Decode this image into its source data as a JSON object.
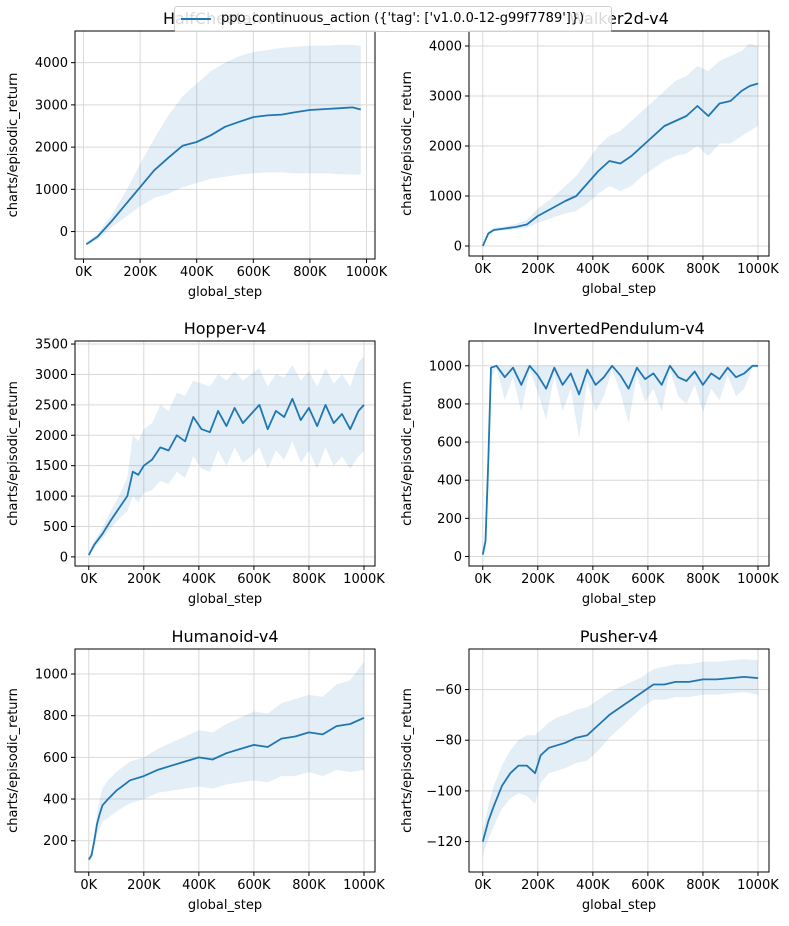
{
  "legend": {
    "label": "ppo_continuous_action ({'tag': ['v1.0.0-12-g99f7789']})",
    "color": "#1f77b4"
  },
  "chart_data": [
    {
      "type": "line",
      "title": "HalfCheetah-v4",
      "xlabel": "global_step",
      "ylabel": "charts/episodic_return",
      "xlim": [
        -30000,
        1030000
      ],
      "ylim": [
        -650,
        4750
      ],
      "xticks": [
        0,
        200000,
        400000,
        600000,
        800000,
        1000000
      ],
      "xtick_labels": [
        "0K",
        "200K",
        "400K",
        "600K",
        "800K",
        "1000K"
      ],
      "yticks": [
        0,
        1000,
        2000,
        3000,
        4000
      ],
      "ytick_labels": [
        "0",
        "1000",
        "2000",
        "3000",
        "4000"
      ],
      "grid": true,
      "series": [
        {
          "x": [
            10000,
            50000,
            100000,
            150000,
            200000,
            250000,
            300000,
            350000,
            400000,
            450000,
            500000,
            550000,
            600000,
            650000,
            700000,
            750000,
            800000,
            850000,
            900000,
            950000,
            980000
          ],
          "y": [
            -300,
            -120,
            250,
            650,
            1050,
            1450,
            1750,
            2030,
            2120,
            2280,
            2480,
            2600,
            2710,
            2750,
            2770,
            2830,
            2880,
            2900,
            2920,
            2940,
            2890
          ],
          "y_upper": [
            -270,
            -50,
            400,
            950,
            1600,
            2200,
            2750,
            3200,
            3500,
            3800,
            4000,
            4150,
            4250,
            4300,
            4350,
            4380,
            4400,
            4400,
            4420,
            4420,
            4400
          ],
          "y_lower": [
            -330,
            -190,
            100,
            350,
            600,
            800,
            900,
            1050,
            1150,
            1250,
            1300,
            1350,
            1380,
            1400,
            1400,
            1380,
            1380,
            1380,
            1360,
            1350,
            1350
          ]
        }
      ]
    },
    {
      "type": "line",
      "title": "Walker2d-v4",
      "xlabel": "global_step",
      "ylabel": "charts/episodic_return",
      "xlim": [
        -50000,
        1040000
      ],
      "ylim": [
        -200,
        4300
      ],
      "xticks": [
        0,
        200000,
        400000,
        600000,
        800000,
        1000000
      ],
      "xtick_labels": [
        "0K",
        "200K",
        "400K",
        "600K",
        "800K",
        "1000K"
      ],
      "yticks": [
        0,
        1000,
        2000,
        3000,
        4000
      ],
      "ytick_labels": [
        "0",
        "1000",
        "2000",
        "3000",
        "4000"
      ],
      "grid": true,
      "series": [
        {
          "x": [
            0,
            20000,
            40000,
            80000,
            120000,
            160000,
            200000,
            250000,
            300000,
            340000,
            380000,
            420000,
            460000,
            500000,
            540000,
            580000,
            620000,
            660000,
            700000,
            740000,
            780000,
            820000,
            860000,
            900000,
            940000,
            970000,
            1000000
          ],
          "y": [
            0,
            250,
            320,
            350,
            380,
            430,
            600,
            750,
            900,
            1000,
            1250,
            1500,
            1700,
            1650,
            1800,
            2000,
            2200,
            2400,
            2500,
            2600,
            2800,
            2600,
            2850,
            2900,
            3100,
            3200,
            3250
          ],
          "y_upper": [
            0,
            290,
            360,
            390,
            440,
            520,
            750,
            950,
            1200,
            1400,
            1700,
            2000,
            2200,
            2300,
            2500,
            2700,
            2900,
            3100,
            3300,
            3400,
            3600,
            3500,
            3700,
            3800,
            3900,
            4050,
            4000
          ],
          "y_lower": [
            0,
            210,
            290,
            310,
            330,
            360,
            460,
            560,
            650,
            700,
            850,
            1050,
            1200,
            1100,
            1200,
            1400,
            1550,
            1700,
            1800,
            1850,
            2000,
            1800,
            2050,
            2050,
            2200,
            2300,
            2400
          ]
        }
      ]
    },
    {
      "type": "line",
      "title": "Hopper-v4",
      "xlabel": "global_step",
      "ylabel": "charts/episodic_return",
      "xlim": [
        -50000,
        1040000
      ],
      "ylim": [
        -150,
        3550
      ],
      "xticks": [
        0,
        200000,
        400000,
        600000,
        800000,
        1000000
      ],
      "xtick_labels": [
        "0K",
        "200K",
        "400K",
        "600K",
        "800K",
        "1000K"
      ],
      "yticks": [
        0,
        500,
        1000,
        1500,
        2000,
        2500,
        3000,
        3500
      ],
      "ytick_labels": [
        "0",
        "500",
        "1000",
        "1500",
        "2000",
        "2500",
        "3000",
        "3500"
      ],
      "grid": true,
      "series": [
        {
          "x": [
            0,
            20000,
            50000,
            80000,
            110000,
            140000,
            160000,
            180000,
            200000,
            230000,
            260000,
            290000,
            320000,
            350000,
            380000,
            410000,
            440000,
            470000,
            500000,
            530000,
            560000,
            590000,
            620000,
            650000,
            680000,
            710000,
            740000,
            770000,
            800000,
            830000,
            860000,
            890000,
            920000,
            950000,
            980000,
            1000000
          ],
          "y": [
            30,
            200,
            380,
            600,
            800,
            1000,
            1400,
            1350,
            1500,
            1600,
            1800,
            1750,
            2000,
            1900,
            2300,
            2100,
            2050,
            2400,
            2150,
            2450,
            2200,
            2350,
            2500,
            2100,
            2400,
            2300,
            2600,
            2250,
            2450,
            2150,
            2500,
            2200,
            2350,
            2100,
            2400,
            2500
          ],
          "y_upper": [
            60,
            260,
            480,
            760,
            1000,
            1300,
            2000,
            1900,
            2100,
            2200,
            2500,
            2400,
            2700,
            2650,
            2900,
            2850,
            2800,
            3000,
            2900,
            3050,
            2900,
            3000,
            3100,
            2800,
            3000,
            2950,
            3150,
            2900,
            3050,
            2800,
            3100,
            2850,
            3000,
            2800,
            3200,
            3300
          ],
          "y_lower": [
            10,
            150,
            300,
            480,
            620,
            760,
            1000,
            900,
            1050,
            1100,
            1250,
            1200,
            1400,
            1300,
            1650,
            1450,
            1400,
            1750,
            1500,
            1800,
            1550,
            1650,
            1800,
            1450,
            1750,
            1600,
            1900,
            1550,
            1750,
            1450,
            1800,
            1500,
            1650,
            1450,
            1650,
            1750
          ]
        }
      ]
    },
    {
      "type": "line",
      "title": "InvertedPendulum-v4",
      "xlabel": "global_step",
      "ylabel": "charts/episodic_return",
      "xlim": [
        -50000,
        1040000
      ],
      "ylim": [
        -50,
        1130
      ],
      "xticks": [
        0,
        200000,
        400000,
        600000,
        800000,
        1000000
      ],
      "xtick_labels": [
        "0K",
        "200K",
        "400K",
        "600K",
        "800K",
        "1000K"
      ],
      "yticks": [
        0,
        200,
        400,
        600,
        800,
        1000
      ],
      "ytick_labels": [
        "0",
        "200",
        "400",
        "600",
        "800",
        "1000"
      ],
      "grid": true,
      "series": [
        {
          "x": [
            0,
            10000,
            20000,
            30000,
            50000,
            80000,
            110000,
            140000,
            170000,
            200000,
            230000,
            260000,
            290000,
            320000,
            350000,
            380000,
            410000,
            440000,
            470000,
            500000,
            530000,
            560000,
            590000,
            620000,
            650000,
            680000,
            710000,
            740000,
            770000,
            800000,
            830000,
            860000,
            890000,
            920000,
            950000,
            980000,
            1000000
          ],
          "y": [
            10,
            80,
            500,
            990,
            1000,
            940,
            990,
            900,
            1000,
            950,
            880,
            990,
            900,
            960,
            850,
            980,
            900,
            940,
            1000,
            950,
            880,
            990,
            930,
            960,
            900,
            1000,
            940,
            920,
            970,
            900,
            960,
            930,
            990,
            940,
            960,
            1000,
            1000
          ],
          "y_upper": [
            20,
            120,
            650,
            1000,
            1000,
            1000,
            1000,
            1000,
            1000,
            1000,
            1000,
            1000,
            1000,
            1000,
            1000,
            1000,
            1000,
            1000,
            1000,
            1000,
            1000,
            1000,
            1000,
            1000,
            1000,
            1000,
            1000,
            1000,
            1000,
            1000,
            1000,
            1000,
            1000,
            1000,
            1000,
            1000,
            1000
          ],
          "y_lower": [
            5,
            40,
            350,
            930,
            990,
            820,
            940,
            760,
            980,
            860,
            720,
            950,
            760,
            880,
            620,
            920,
            760,
            840,
            980,
            860,
            700,
            950,
            810,
            880,
            760,
            980,
            840,
            800,
            900,
            760,
            880,
            820,
            950,
            840,
            880,
            990,
            990
          ]
        }
      ]
    },
    {
      "type": "line",
      "title": "Humanoid-v4",
      "xlabel": "global_step",
      "ylabel": "charts/episodic_return",
      "xlim": [
        -50000,
        1040000
      ],
      "ylim": [
        50,
        1120
      ],
      "xticks": [
        0,
        200000,
        400000,
        600000,
        800000,
        1000000
      ],
      "xtick_labels": [
        "0K",
        "200K",
        "400K",
        "600K",
        "800K",
        "1000K"
      ],
      "yticks": [
        200,
        400,
        600,
        800,
        1000
      ],
      "ytick_labels": [
        "200",
        "400",
        "600",
        "800",
        "1000"
      ],
      "grid": true,
      "series": [
        {
          "x": [
            0,
            10000,
            20000,
            30000,
            40000,
            50000,
            70000,
            100000,
            150000,
            200000,
            250000,
            300000,
            350000,
            400000,
            450000,
            500000,
            550000,
            600000,
            650000,
            700000,
            750000,
            800000,
            850000,
            900000,
            950000,
            1000000
          ],
          "y": [
            110,
            130,
            200,
            280,
            330,
            370,
            400,
            440,
            490,
            510,
            540,
            560,
            580,
            600,
            590,
            620,
            640,
            660,
            650,
            690,
            700,
            720,
            710,
            750,
            760,
            790
          ],
          "y_upper": [
            120,
            150,
            230,
            330,
            400,
            450,
            490,
            530,
            580,
            600,
            640,
            670,
            700,
            730,
            720,
            760,
            790,
            820,
            810,
            860,
            880,
            900,
            890,
            950,
            970,
            1060
          ],
          "y_lower": [
            100,
            110,
            170,
            230,
            260,
            290,
            310,
            340,
            380,
            400,
            430,
            440,
            450,
            460,
            450,
            470,
            480,
            490,
            480,
            510,
            510,
            530,
            510,
            540,
            530,
            540
          ]
        }
      ]
    },
    {
      "type": "line",
      "title": "Pusher-v4",
      "xlabel": "global_step",
      "ylabel": "charts/episodic_return",
      "xlim": [
        -50000,
        1040000
      ],
      "ylim": [
        -132,
        -44
      ],
      "xticks": [
        0,
        200000,
        400000,
        600000,
        800000,
        1000000
      ],
      "xtick_labels": [
        "0K",
        "200K",
        "400K",
        "600K",
        "800K",
        "1000K"
      ],
      "yticks": [
        -120,
        -100,
        -80,
        -60
      ],
      "ytick_labels": [
        "−120",
        "−100",
        "−80",
        "−60"
      ],
      "grid": true,
      "series": [
        {
          "x": [
            0,
            20000,
            40000,
            70000,
            100000,
            130000,
            160000,
            190000,
            210000,
            240000,
            270000,
            300000,
            340000,
            380000,
            420000,
            460000,
            500000,
            540000,
            580000,
            620000,
            660000,
            700000,
            750000,
            800000,
            850000,
            900000,
            950000,
            1000000
          ],
          "y": [
            -120,
            -112,
            -106,
            -98,
            -93,
            -90,
            -90,
            -93,
            -86,
            -83,
            -82,
            -81,
            -79,
            -78,
            -74,
            -70,
            -67,
            -64,
            -61,
            -58,
            -58,
            -57,
            -57,
            -56,
            -56,
            -55.5,
            -55,
            -55.5
          ],
          "y_upper": [
            -116,
            -106,
            -98,
            -90,
            -84,
            -80,
            -78,
            -78,
            -76,
            -73,
            -71,
            -70,
            -68,
            -67,
            -64,
            -61,
            -59,
            -57,
            -55,
            -52,
            -51,
            -50,
            -50,
            -49,
            -49,
            -48.5,
            -48,
            -48.5
          ],
          "y_lower": [
            -125,
            -119,
            -114,
            -107,
            -103,
            -101,
            -102,
            -105,
            -97,
            -93,
            -92,
            -91,
            -89,
            -88,
            -84,
            -79,
            -75,
            -71,
            -67,
            -64,
            -64,
            -63,
            -63,
            -62,
            -62,
            -61.5,
            -61,
            -62
          ]
        }
      ]
    }
  ]
}
